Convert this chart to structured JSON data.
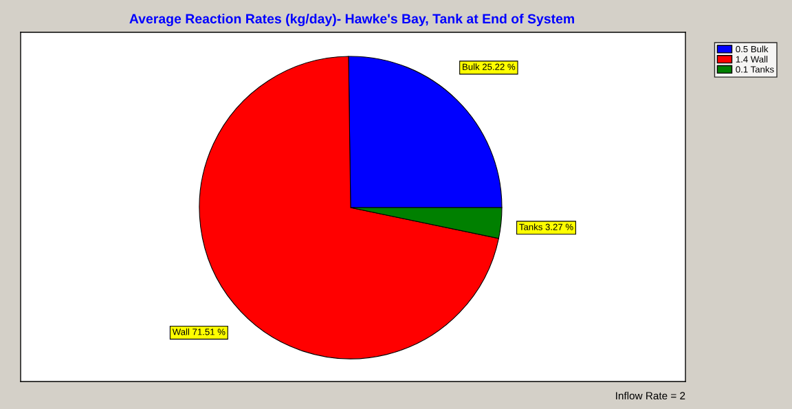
{
  "chart_data": {
    "type": "pie",
    "title": "Average Reaction Rates (kg/day)- Hawke's Bay, Tank at End of System",
    "categories": [
      "0.5 Bulk",
      "1.4 Wall",
      "0.1 Tanks"
    ],
    "values": [
      25.22,
      71.51,
      3.27
    ],
    "colors": [
      "#0000ff",
      "#ff0000",
      "#008000"
    ],
    "value_labels": [
      "Bulk 25.22 %",
      "Wall 71.51 %",
      "Tanks 3.27 %"
    ],
    "legend": "top right",
    "annotations": [
      "Inflow Rate = 2"
    ]
  }
}
